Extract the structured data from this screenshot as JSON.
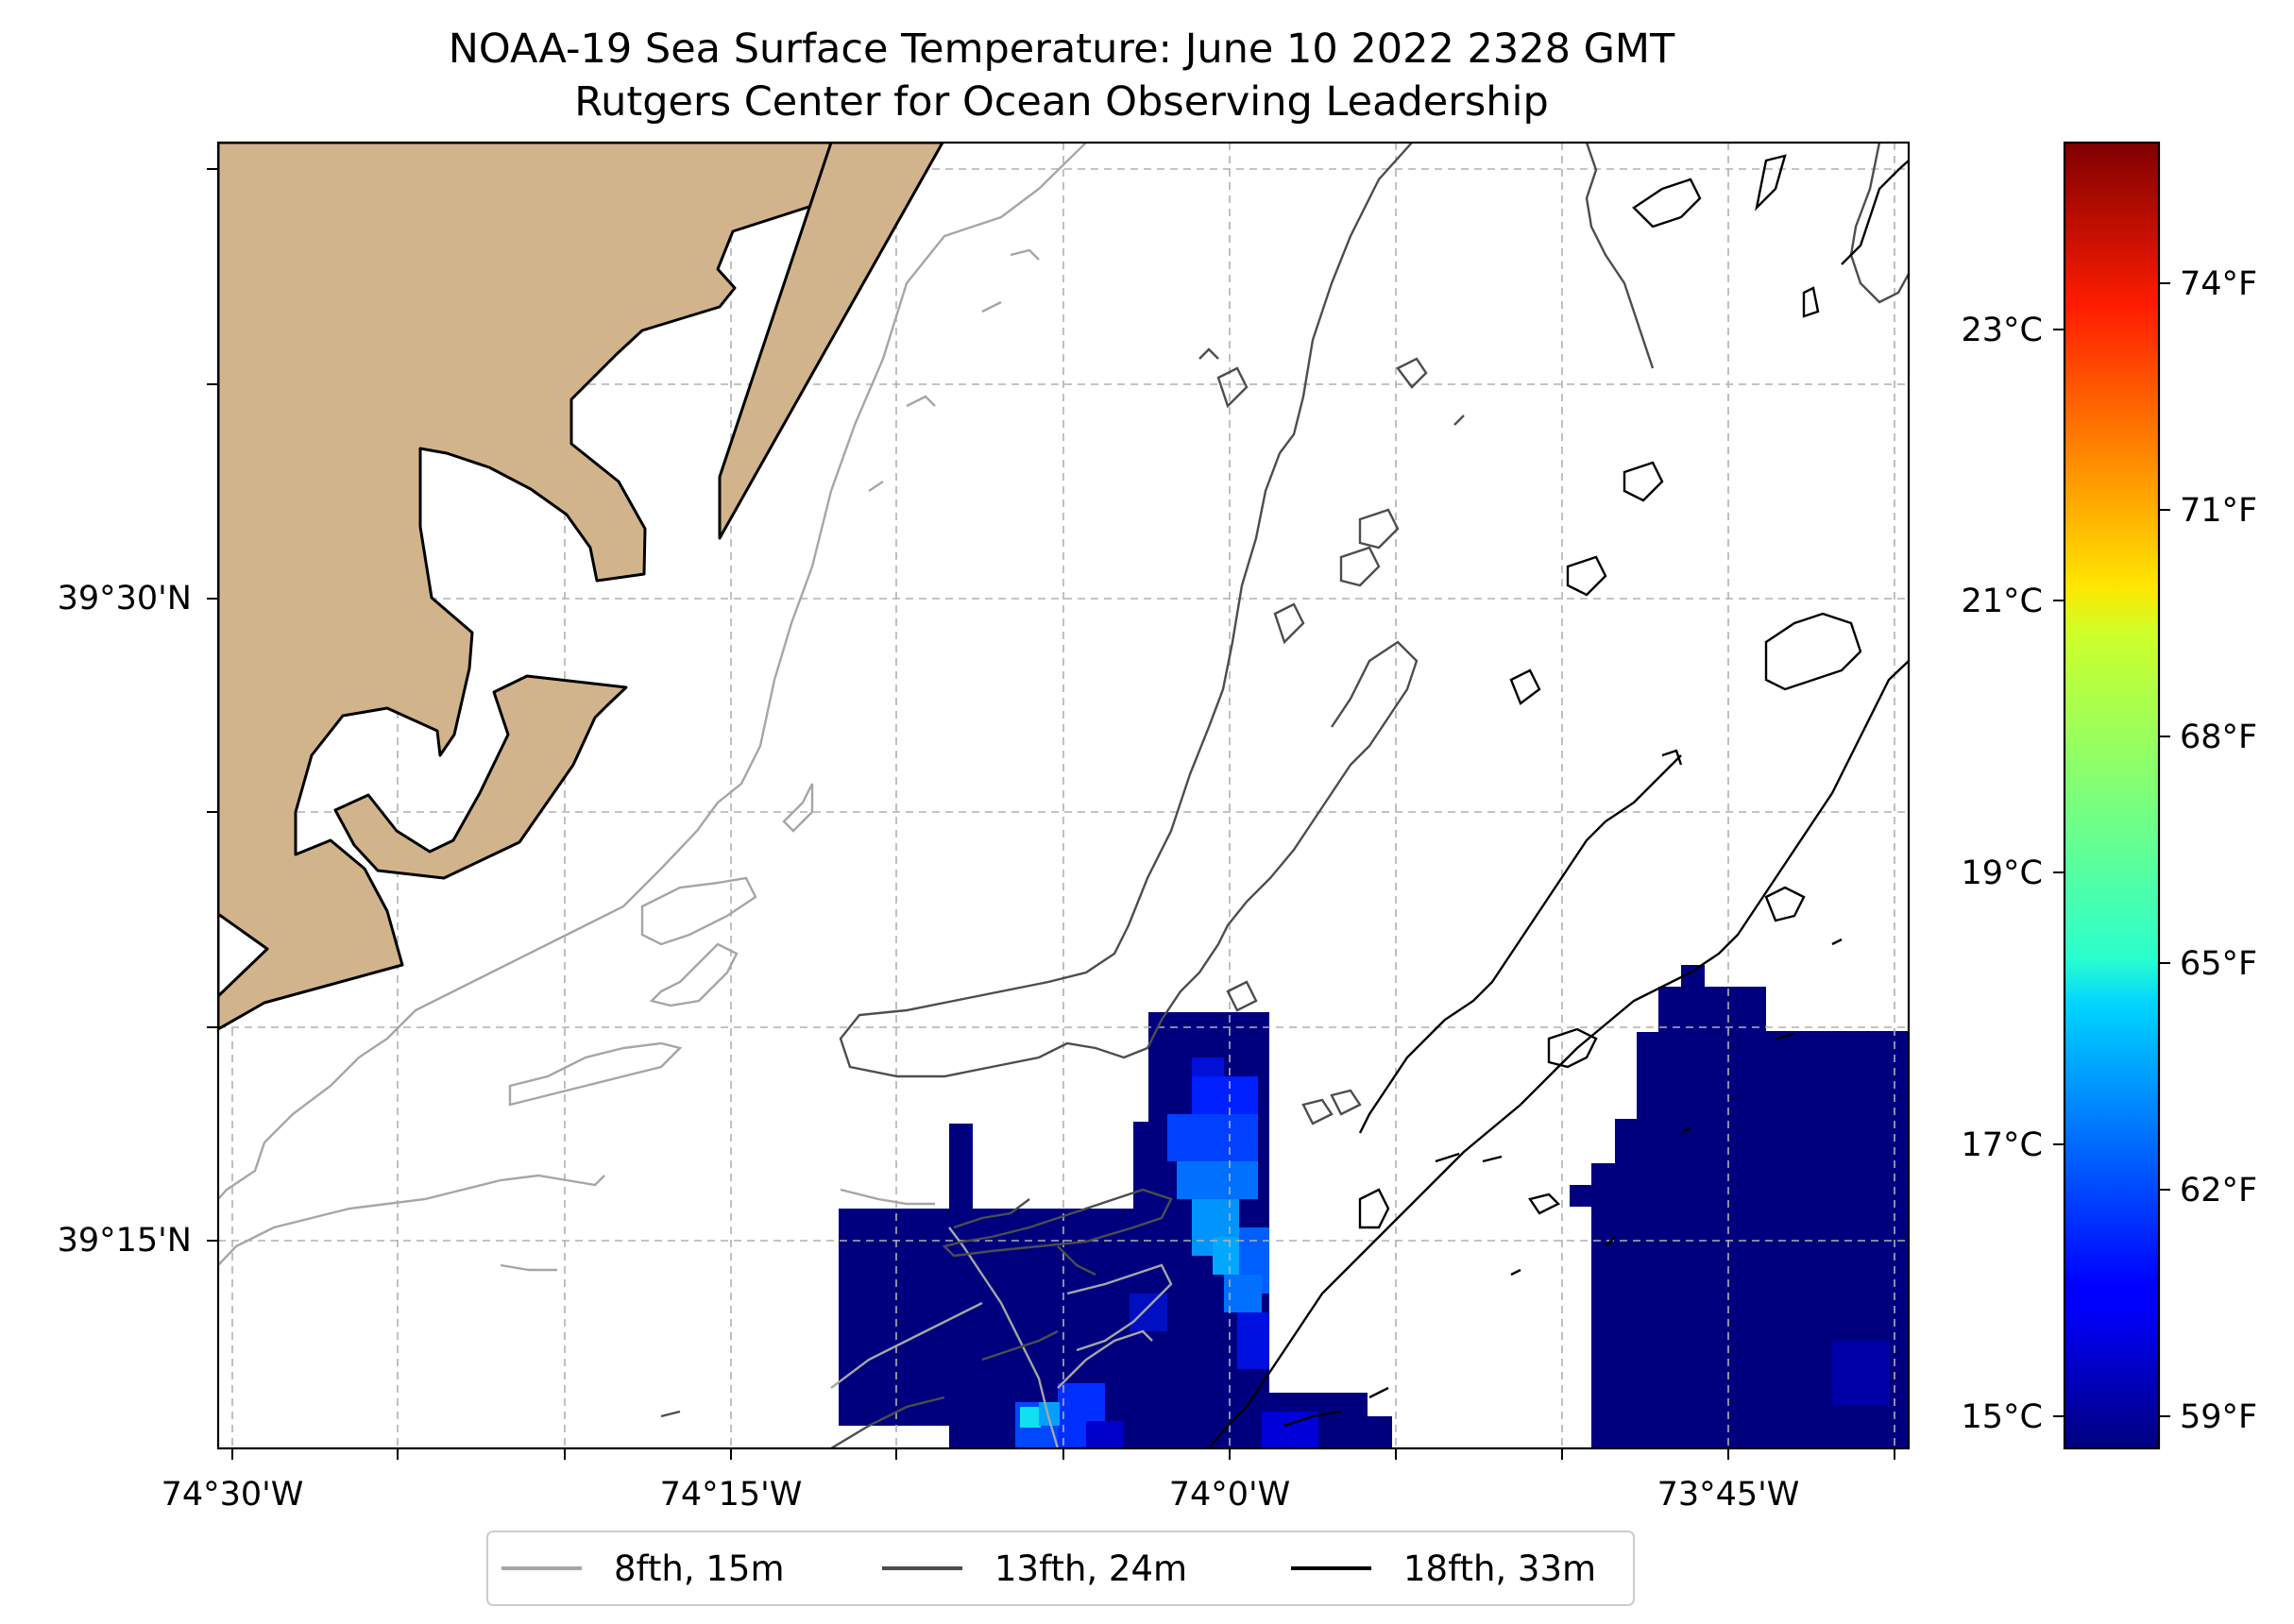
{
  "title": {
    "line1": "NOAA-19 Sea Surface Temperature: June 10 2022 2328 GMT",
    "line2": "Rutgers Center for Ocean Observing Leadership"
  },
  "axes": {
    "lon_ticks": [
      "74°30'W",
      "74°15'W",
      "74°0'W",
      "73°45'W"
    ],
    "lat_ticks": [
      "39°30'N",
      "39°15'N"
    ]
  },
  "colorbar": {
    "celsius_ticks": [
      "23°C",
      "21°C",
      "19°C",
      "17°C",
      "15°C"
    ],
    "fahrenheit_ticks": [
      "74°F",
      "71°F",
      "68°F",
      "65°F",
      "62°F",
      "59°F"
    ],
    "colormap": "jet",
    "range_celsius": [
      14.8,
      24.5
    ]
  },
  "legend": {
    "items": [
      {
        "label": "8fth, 15m",
        "color": "#a6a6a6"
      },
      {
        "label": "13fth, 24m",
        "color": "#4d4d4d"
      },
      {
        "label": "18fth, 33m",
        "color": "#000000"
      }
    ]
  },
  "colors": {
    "land": "#d2b48c",
    "sst_cold": "#00007f",
    "gridline": "#b0b0b0"
  }
}
